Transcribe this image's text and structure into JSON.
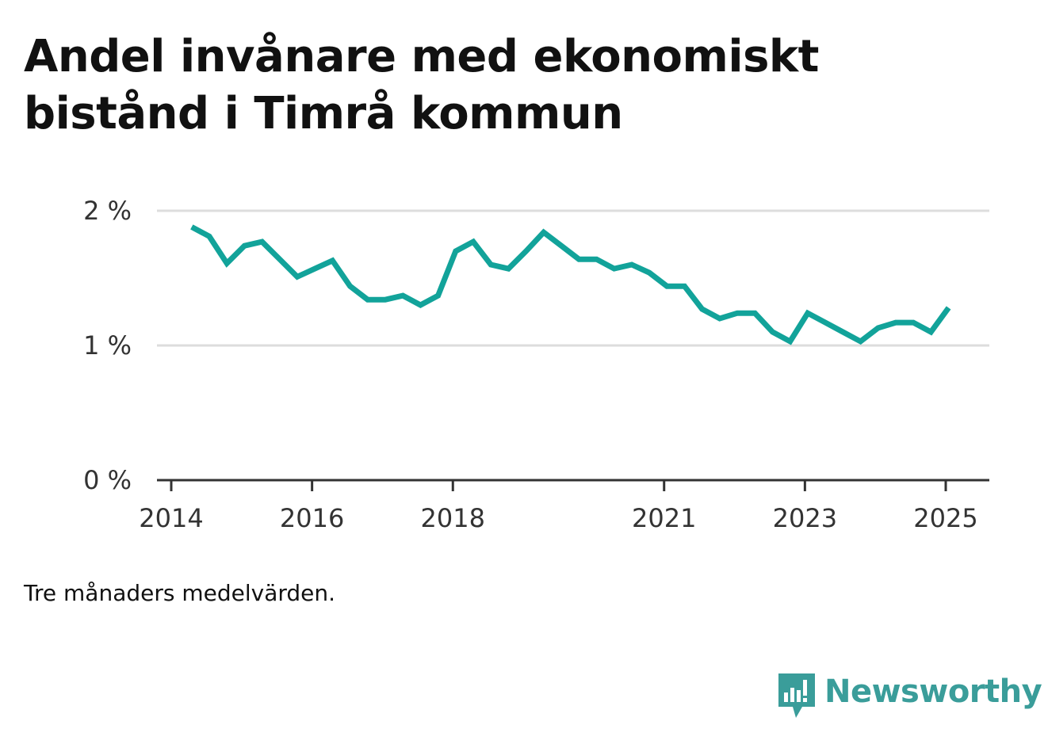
{
  "header": {
    "title_line1": "Andel invånare med ekonomiskt",
    "title_line2": "bistånd i Timrå kommun"
  },
  "footnote": "Tre månaders medelvärden.",
  "brand": {
    "name": "Newsworthy",
    "color": "#3a9d9a",
    "icon": "bar-chart-speech-bubble-icon"
  },
  "chart_data": {
    "type": "line",
    "title": "Andel invånare med ekonomiskt bistånd i Timrå kommun",
    "xlabel": "",
    "ylabel": "",
    "x_ticks": [
      "2014",
      "2016",
      "2018",
      "2021",
      "2023",
      "2025"
    ],
    "y_ticks": [
      "0 %",
      "1 %",
      "2 %"
    ],
    "ylim": [
      0,
      2
    ],
    "grid": true,
    "line_color": "#12a39a",
    "series": [
      {
        "x": [
          2014.29,
          2014.54,
          2014.79,
          2015.04,
          2015.29,
          2015.54,
          2015.79,
          2016.04,
          2016.29,
          2016.54,
          2016.79,
          2017.04,
          2017.29,
          2017.54,
          2017.79,
          2018.04,
          2018.29,
          2018.54,
          2018.79,
          2019.04,
          2019.29,
          2019.54,
          2019.79,
          2020.04,
          2020.29,
          2020.54,
          2020.79,
          2021.04,
          2021.29,
          2021.54,
          2021.79,
          2022.04,
          2022.29,
          2022.54,
          2022.79,
          2023.04,
          2023.29,
          2023.54,
          2023.79,
          2024.04,
          2024.29,
          2024.54,
          2024.79,
          2025.04
        ],
        "values": [
          1.88,
          1.81,
          1.61,
          1.74,
          1.77,
          1.64,
          1.51,
          1.57,
          1.63,
          1.44,
          1.34,
          1.34,
          1.37,
          1.3,
          1.37,
          1.7,
          1.77,
          1.6,
          1.57,
          1.7,
          1.84,
          1.74,
          1.64,
          1.64,
          1.57,
          1.6,
          1.54,
          1.44,
          1.44,
          1.27,
          1.2,
          1.24,
          1.24,
          1.1,
          1.03,
          1.24,
          1.17,
          1.1,
          1.03,
          1.13,
          1.17,
          1.17,
          1.1,
          1.28
        ]
      }
    ]
  }
}
